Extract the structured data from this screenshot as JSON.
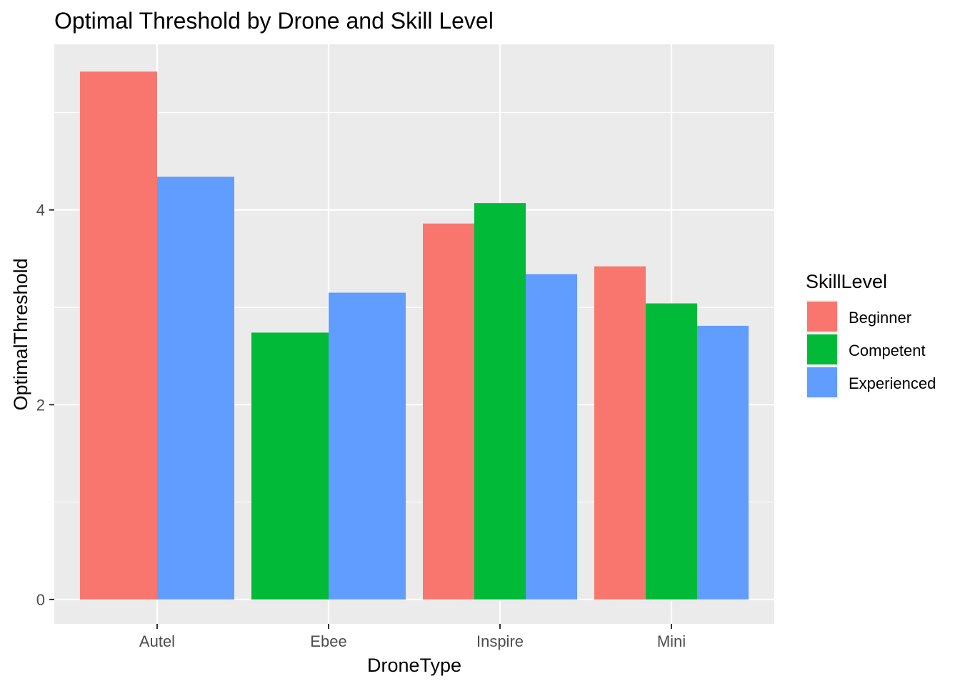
{
  "chart_data": {
    "type": "bar",
    "title": "Optimal Threshold by Drone and Skill Level",
    "xlabel": "DroneType",
    "ylabel": "OptimalThreshold",
    "categories": [
      "Autel",
      "Ebee",
      "Inspire",
      "Mini"
    ],
    "series": [
      {
        "name": "Beginner",
        "color": "#F8766D",
        "values": [
          5.42,
          null,
          3.86,
          3.42
        ]
      },
      {
        "name": "Competent",
        "color": "#00BA38",
        "values": [
          null,
          2.74,
          4.07,
          3.04
        ]
      },
      {
        "name": "Experienced",
        "color": "#619CFF",
        "values": [
          4.34,
          3.15,
          3.34,
          2.81
        ]
      }
    ],
    "ylim": [
      -0.25,
      5.7
    ],
    "y_ticks": [
      0,
      2,
      4
    ],
    "legend": {
      "title": "SkillLevel",
      "position": "right"
    },
    "grid": true,
    "panel_background": "#EBEBEB",
    "grid_color": "#FFFFFF"
  }
}
